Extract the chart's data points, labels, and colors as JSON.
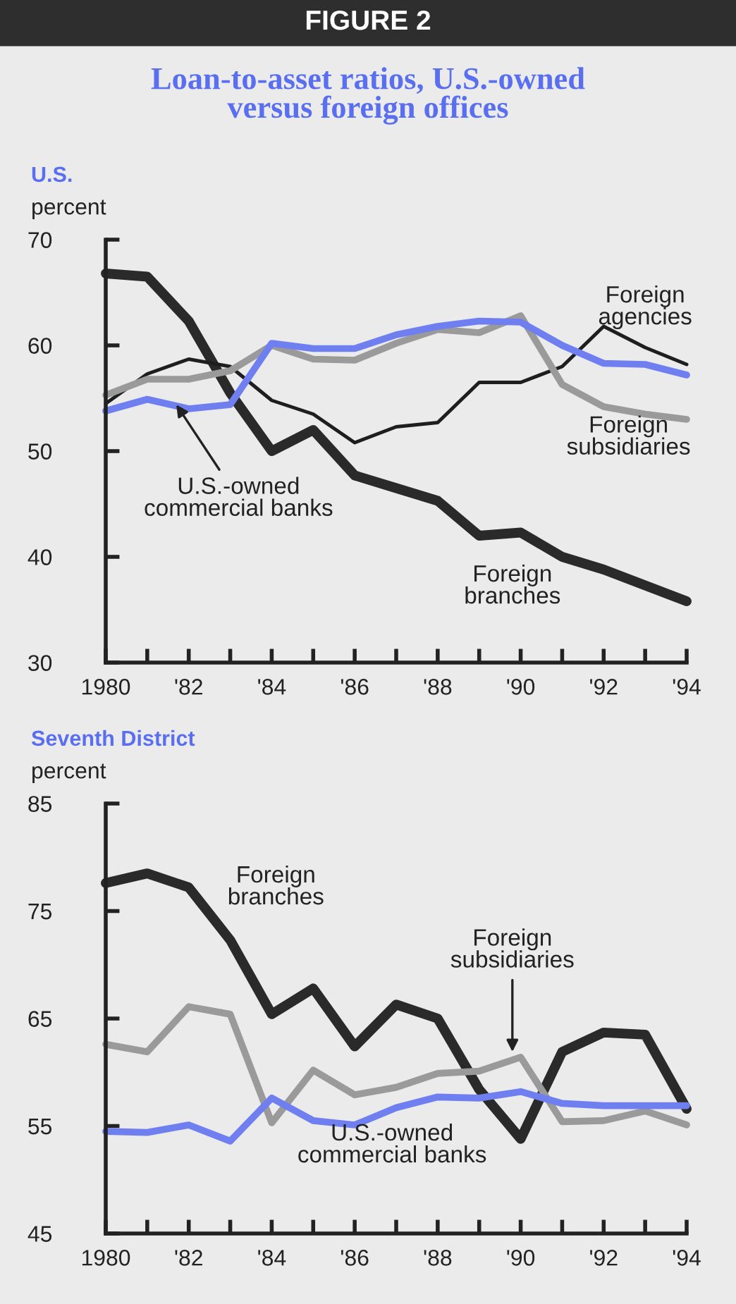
{
  "chart_data": [
    {
      "type": "line",
      "title": "Loan-to-asset ratios, U.S.-owned\nversus foreign offices",
      "subtitle": "U.S.",
      "ylabel": "percent",
      "annotations": [
        "FIGURE 2"
      ],
      "x": [
        1980,
        1981,
        1982,
        1983,
        1984,
        1985,
        1986,
        1987,
        1988,
        1989,
        1990,
        1991,
        1992,
        1993,
        1994
      ],
      "series": [
        {
          "name": "Foreign branches",
          "color": "#2a2a2a",
          "values": [
            66.8,
            66.5,
            62.3,
            55.5,
            50,
            52,
            47.7,
            46.5,
            45.3,
            42,
            42.3,
            40,
            38.8,
            37.3,
            35.8
          ]
        },
        {
          "name": "Foreign agencies",
          "color": "#1e1e1e",
          "values": [
            54.5,
            57.3,
            58.7,
            58,
            54.8,
            53.5,
            50.8,
            52.3,
            52.7,
            56.5,
            56.5,
            58,
            61.8,
            59.8,
            58.2
          ]
        },
        {
          "name": "Foreign subsidiaries",
          "color": "#9a9a9a",
          "values": [
            55.3,
            56.8,
            56.8,
            57.6,
            60,
            58.7,
            58.6,
            60.2,
            61.5,
            61.2,
            62.8,
            56.3,
            54.2,
            53.5,
            53
          ]
        },
        {
          "name": "U.S.-owned commercial banks",
          "color": "#6f7ff0",
          "values": [
            53.8,
            54.9,
            54,
            54.4,
            60.2,
            59.7,
            59.7,
            61,
            61.8,
            62.3,
            62.2,
            60,
            58.3,
            58.2,
            57.2
          ]
        }
      ],
      "xlim": [
        1980,
        1994
      ],
      "ylim": [
        30,
        70
      ],
      "yticks": [
        30,
        40,
        50,
        60,
        70
      ],
      "xticks": [
        {
          "value": 1980,
          "label": "1980"
        },
        {
          "value": 1981,
          "label": null
        },
        {
          "value": 1982,
          "label": "'82"
        },
        {
          "value": 1983,
          "label": null
        },
        {
          "value": 1984,
          "label": "'84"
        },
        {
          "value": 1985,
          "label": null
        },
        {
          "value": 1986,
          "label": "'86"
        },
        {
          "value": 1987,
          "label": null
        },
        {
          "value": 1988,
          "label": "'88"
        },
        {
          "value": 1989,
          "label": null
        },
        {
          "value": 1990,
          "label": "'90"
        },
        {
          "value": 1991,
          "label": null
        },
        {
          "value": 1992,
          "label": "'92"
        },
        {
          "value": 1993,
          "label": null
        },
        {
          "value": 1994,
          "label": "'94"
        }
      ]
    },
    {
      "type": "line",
      "subtitle": "Seventh District",
      "ylabel": "percent",
      "x": [
        1980,
        1981,
        1982,
        1983,
        1984,
        1985,
        1986,
        1987,
        1988,
        1989,
        1990,
        1991,
        1992,
        1993,
        1994
      ],
      "series": [
        {
          "name": "Foreign branches",
          "color": "#2a2a2a",
          "values": [
            77.6,
            78.5,
            77.2,
            72.3,
            65.4,
            67.8,
            62.4,
            66.3,
            65,
            58.4,
            53.8,
            61.9,
            63.7,
            63.5,
            56.6
          ]
        },
        {
          "name": "Foreign subsidiaries",
          "color": "#9a9a9a",
          "values": [
            62.6,
            61.9,
            66.1,
            65.4,
            55.3,
            60.2,
            57.9,
            58.6,
            59.9,
            60.1,
            61.4,
            55.4,
            55.5,
            56.4,
            55.1
          ]
        },
        {
          "name": "U.S.-owned commercial banks",
          "color": "#6f7ff0",
          "values": [
            54.5,
            54.4,
            55.1,
            53.6,
            57.6,
            55.5,
            55.1,
            56.7,
            57.7,
            57.6,
            58.2,
            57.1,
            56.9,
            56.9,
            56.9
          ]
        }
      ],
      "xlim": [
        1980,
        1994
      ],
      "ylim": [
        45,
        85
      ],
      "yticks": [
        45,
        55,
        65,
        75,
        85
      ],
      "xticks": [
        {
          "value": 1980,
          "label": "1980"
        },
        {
          "value": 1981,
          "label": null
        },
        {
          "value": 1982,
          "label": "'82"
        },
        {
          "value": 1983,
          "label": null
        },
        {
          "value": 1984,
          "label": "'84"
        },
        {
          "value": 1985,
          "label": null
        },
        {
          "value": 1986,
          "label": "'86"
        },
        {
          "value": 1987,
          "label": null
        },
        {
          "value": 1988,
          "label": "'88"
        },
        {
          "value": 1989,
          "label": null
        },
        {
          "value": 1990,
          "label": "'90"
        },
        {
          "value": 1991,
          "label": null
        },
        {
          "value": 1992,
          "label": "'92"
        },
        {
          "value": 1993,
          "label": null
        },
        {
          "value": 1994,
          "label": "'94"
        }
      ]
    }
  ]
}
